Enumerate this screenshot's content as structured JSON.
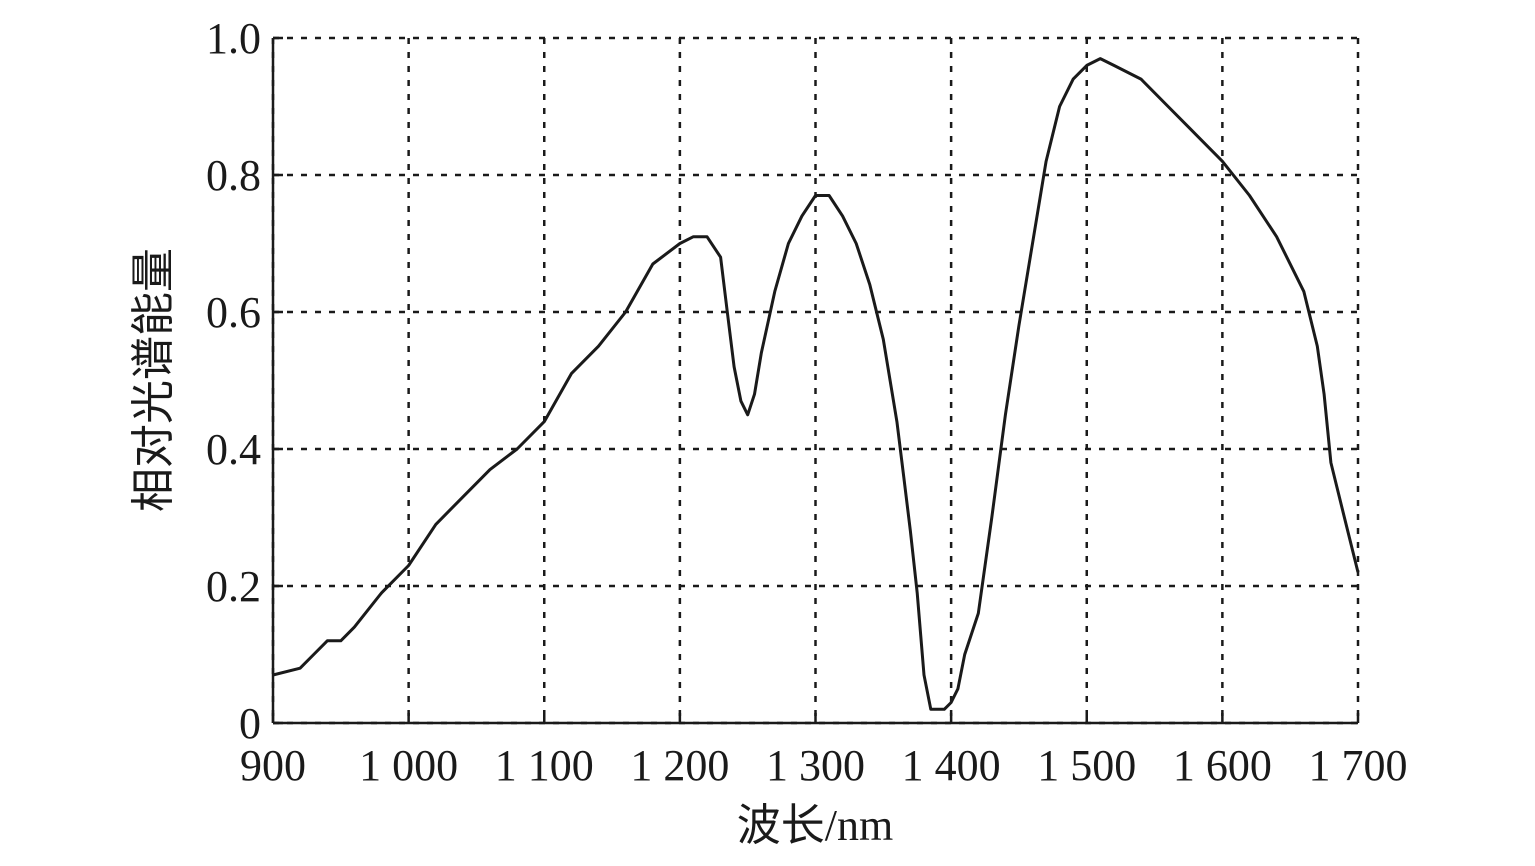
{
  "chart_data": {
    "type": "line",
    "x_label": "波长/nm",
    "y_label": "相对光谱能量",
    "xlim": [
      900,
      1700
    ],
    "ylim": [
      0,
      1
    ],
    "xticks": [
      900,
      {
        "value": 1000,
        "label": "1 000"
      },
      {
        "value": 1100,
        "label": "1 100"
      },
      {
        "value": 1200,
        "label": "1 200"
      },
      {
        "value": 1300,
        "label": "1 300"
      },
      {
        "value": 1400,
        "label": "1 400"
      },
      {
        "value": 1500,
        "label": "1 500"
      },
      {
        "value": 1600,
        "label": "1 600"
      },
      {
        "value": 1700,
        "label": "1 700"
      }
    ],
    "yticks": [
      0,
      0.2,
      0.4,
      0.6,
      0.8,
      {
        "value": 1,
        "label": "1.0"
      }
    ],
    "grid": true,
    "x": [
      900,
      920,
      930,
      940,
      950,
      960,
      980,
      1000,
      1020,
      1040,
      1060,
      1080,
      1100,
      1120,
      1140,
      1160,
      1180,
      1200,
      1210,
      1220,
      1230,
      1235,
      1240,
      1245,
      1250,
      1255,
      1260,
      1270,
      1280,
      1290,
      1300,
      1310,
      1320,
      1330,
      1340,
      1350,
      1360,
      1365,
      1370,
      1375,
      1380,
      1385,
      1395,
      1400,
      1405,
      1410,
      1420,
      1430,
      1440,
      1450,
      1460,
      1470,
      1480,
      1490,
      1500,
      1510,
      1520,
      1540,
      1560,
      1580,
      1600,
      1620,
      1640,
      1660,
      1670,
      1675,
      1680,
      1690,
      1700
    ],
    "series": [
      {
        "color": "#1a1a1a",
        "values": [
          0.07,
          0.08,
          0.1,
          0.12,
          0.12,
          0.14,
          0.19,
          0.23,
          0.29,
          0.33,
          0.37,
          0.4,
          0.44,
          0.51,
          0.55,
          0.6,
          0.67,
          0.7,
          0.71,
          0.71,
          0.68,
          0.6,
          0.52,
          0.47,
          0.45,
          0.48,
          0.54,
          0.63,
          0.7,
          0.74,
          0.77,
          0.77,
          0.74,
          0.7,
          0.64,
          0.56,
          0.44,
          0.36,
          0.28,
          0.19,
          0.07,
          0.02,
          0.02,
          0.03,
          0.05,
          0.1,
          0.16,
          0.3,
          0.45,
          0.58,
          0.7,
          0.82,
          0.9,
          0.94,
          0.96,
          0.97,
          0.96,
          0.94,
          0.9,
          0.86,
          0.82,
          0.77,
          0.71,
          0.63,
          0.55,
          0.48,
          0.38,
          0.3,
          0.22
        ]
      }
    ]
  }
}
